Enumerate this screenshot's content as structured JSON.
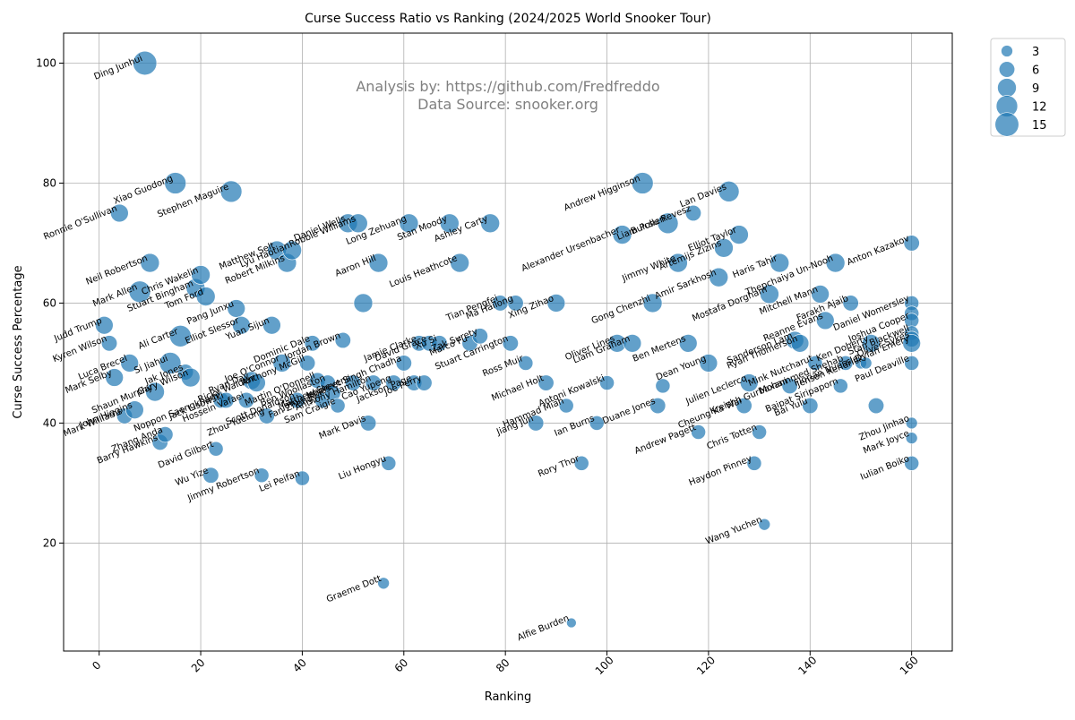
{
  "chart_data": {
    "type": "scatter",
    "title": "Curse Success Ratio vs Ranking (2024/2025 World Snooker Tour)",
    "xlabel": "Ranking",
    "ylabel": "Curse Success Percentage",
    "xlim": [
      -7,
      168
    ],
    "ylim": [
      2,
      105
    ],
    "xticks": [
      0,
      20,
      40,
      60,
      80,
      100,
      120,
      140,
      160
    ],
    "yticks": [
      20,
      40,
      60,
      80,
      100
    ],
    "grid": true,
    "point_color": "#1f77b4",
    "annotation_lines": [
      "Analysis by: https://github.com/Fredfreddo",
      "Data Source: snooker.org"
    ],
    "legend": {
      "position": "top-right (outside plot)",
      "sizes": [
        3,
        6,
        9,
        12,
        15
      ]
    },
    "points": [
      {
        "name": "Judd Trump",
        "x": 1,
        "y": 56.3,
        "s": 8
      },
      {
        "name": "Kyren Wilson",
        "x": 2,
        "y": 53.3,
        "s": 6
      },
      {
        "name": "Ronnie O'Sullivan",
        "x": 4,
        "y": 75,
        "s": 8
      },
      {
        "name": "Mark Selby",
        "x": 3,
        "y": 47.6,
        "s": 8
      },
      {
        "name": "Mark Williams",
        "x": 5,
        "y": 41.2,
        "s": 6
      },
      {
        "name": "Luca Brecel",
        "x": 6,
        "y": 50,
        "s": 8
      },
      {
        "name": "John Higgins",
        "x": 7,
        "y": 42.2,
        "s": 8
      },
      {
        "name": "Mark Allen",
        "x": 8,
        "y": 61.9,
        "s": 12
      },
      {
        "name": "Ding Junhui",
        "x": 9,
        "y": 100,
        "s": 15
      },
      {
        "name": "Neil Robertson",
        "x": 10,
        "y": 66.7,
        "s": 9
      },
      {
        "name": "Shaun Murphy",
        "x": 11,
        "y": 45.2,
        "s": 9
      },
      {
        "name": "Barry Hawkins",
        "x": 12,
        "y": 36.8,
        "s": 6
      },
      {
        "name": "Zhang Anda",
        "x": 13,
        "y": 38.1,
        "s": 6
      },
      {
        "name": "Si Jiahui",
        "x": 14,
        "y": 50,
        "s": 12
      },
      {
        "name": "Xiao Guodong",
        "x": 15,
        "y": 80,
        "s": 12
      },
      {
        "name": "Ali Carter",
        "x": 16,
        "y": 54.5,
        "s": 12
      },
      {
        "name": "Jak Jones",
        "x": 17,
        "y": 48.5,
        "s": 6
      },
      {
        "name": "Gary Wilson",
        "x": 18,
        "y": 47.6,
        "s": 9
      },
      {
        "name": "Stuart Bingham",
        "x": 19,
        "y": 62.5,
        "s": 9
      },
      {
        "name": "Chris Wakelin",
        "x": 20,
        "y": 64.7,
        "s": 9
      },
      {
        "name": "Tom Ford",
        "x": 21,
        "y": 61.1,
        "s": 9
      },
      {
        "name": "Wu Yize",
        "x": 22,
        "y": 31.3,
        "s": 6
      },
      {
        "name": "David Gilbert",
        "x": 23,
        "y": 35.7,
        "s": 5
      },
      {
        "name": "Noppon Saengkham",
        "x": 24,
        "y": 43.8,
        "s": 6
      },
      {
        "name": "Jack Lisowski",
        "x": 25,
        "y": 43.8,
        "s": 6
      },
      {
        "name": "Stephen Maguire",
        "x": 26,
        "y": 78.6,
        "s": 12
      },
      {
        "name": "Pang Junxu",
        "x": 27,
        "y": 59.1,
        "s": 8
      },
      {
        "name": "Elliot Slessor",
        "x": 28,
        "y": 56.3,
        "s": 8
      },
      {
        "name": "Hossein Vafaei",
        "x": 29,
        "y": 43.8,
        "s": 6
      },
      {
        "name": "Ryan Day",
        "x": 30,
        "y": 47.1,
        "s": 8
      },
      {
        "name": "Ricky Walden",
        "x": 31,
        "y": 46.7,
        "s": 8
      },
      {
        "name": "Jimmy Robertson",
        "x": 32,
        "y": 31.3,
        "s": 5
      },
      {
        "name": "Zhou Yuelong",
        "x": 33,
        "y": 41.2,
        "s": 6
      },
      {
        "name": "Yuan Sijun",
        "x": 34,
        "y": 56.3,
        "s": 8
      },
      {
        "name": "Matthew Selt",
        "x": 35,
        "y": 68.8,
        "s": 9
      },
      {
        "name": "Joe O'Connor",
        "x": 36,
        "y": 50,
        "s": 8
      },
      {
        "name": "Robert Milkins",
        "x": 37,
        "y": 66.7,
        "s": 9
      },
      {
        "name": "Lyu Haotian",
        "x": 38,
        "y": 68.8,
        "s": 9
      },
      {
        "name": "Scott Donaldson",
        "x": 39,
        "y": 43.8,
        "s": 6
      },
      {
        "name": "Lei Peifan",
        "x": 40,
        "y": 30.8,
        "s": 5
      },
      {
        "name": "Anthony McGill",
        "x": 41,
        "y": 50,
        "s": 6
      },
      {
        "name": "Dominic Dale",
        "x": 42,
        "y": 53.3,
        "s": 6
      },
      {
        "name": "Martin O'Donnell",
        "x": 43,
        "y": 47.1,
        "s": 6
      },
      {
        "name": "Fan Zhengyi",
        "x": 44,
        "y": 43.8,
        "s": 6
      },
      {
        "name": "Ben Woollaston",
        "x": 45,
        "y": 46.7,
        "s": 6
      },
      {
        "name": "Jamie Jones",
        "x": 46,
        "y": 45,
        "s": 6
      },
      {
        "name": "Sam Craigie",
        "x": 47,
        "y": 42.9,
        "s": 5
      },
      {
        "name": "Jordan Brown",
        "x": 48,
        "y": 53.8,
        "s": 6
      },
      {
        "name": "Daniel Wells",
        "x": 49,
        "y": 73.3,
        "s": 9
      },
      {
        "name": "Matthew Stevens",
        "x": 50,
        "y": 46.7,
        "s": 6
      },
      {
        "name": "Robbie Williams",
        "x": 51,
        "y": 73.3,
        "s": 9
      },
      {
        "name": "Jordan Brown II",
        "x": 52,
        "y": 60,
        "s": 9
      },
      {
        "name": "Mark Davis",
        "x": 53,
        "y": 40,
        "s": 6
      },
      {
        "name": "Anthony Hamilton",
        "x": 54,
        "y": 46.7,
        "s": 6
      },
      {
        "name": "Aaron Hill",
        "x": 55,
        "y": 66.7,
        "s": 9
      },
      {
        "name": "Graeme Dott",
        "x": 56,
        "y": 13.3,
        "s": 3
      },
      {
        "name": "Liu Hongyu",
        "x": 57,
        "y": 33.3,
        "s": 5
      },
      {
        "name": "Cao Yupeng",
        "x": 58,
        "y": 46.7,
        "s": 6
      },
      {
        "name": "Ishpreet Singh Chadha",
        "x": 60,
        "y": 50,
        "s": 6
      },
      {
        "name": "Long Zehuang",
        "x": 61,
        "y": 73.3,
        "s": 9
      },
      {
        "name": "Jackson Page",
        "x": 62,
        "y": 46.7,
        "s": 6
      },
      {
        "name": "Jamie Clarke",
        "x": 63,
        "y": 53.3,
        "s": 6
      },
      {
        "name": "Joe Perry",
        "x": 64,
        "y": 46.7,
        "s": 6
      },
      {
        "name": "David Grace",
        "x": 65,
        "y": 53.3,
        "s": 6
      },
      {
        "name": "Xu Si",
        "x": 67,
        "y": 53.3,
        "s": 6
      },
      {
        "name": "Stan Moody",
        "x": 69,
        "y": 73.3,
        "s": 9
      },
      {
        "name": "Louis Heathcote",
        "x": 71,
        "y": 66.7,
        "s": 9
      },
      {
        "name": "Marco Fu",
        "x": 73,
        "y": 53.3,
        "s": 6
      },
      {
        "name": "Zak Surety",
        "x": 75,
        "y": 54.5,
        "s": 6
      },
      {
        "name": "Ashley Carty",
        "x": 77,
        "y": 73.3,
        "s": 9
      },
      {
        "name": "Tian Pengfei",
        "x": 79,
        "y": 60,
        "s": 6
      },
      {
        "name": "Stuart Carrington",
        "x": 81,
        "y": 53.3,
        "s": 6
      },
      {
        "name": "Ma Hailong",
        "x": 82,
        "y": 60,
        "s": 6
      },
      {
        "name": "Ross Muir",
        "x": 84,
        "y": 50,
        "s": 5
      },
      {
        "name": "Jiang Jun",
        "x": 86,
        "y": 40,
        "s": 6
      },
      {
        "name": "Michael Holt",
        "x": 88,
        "y": 46.7,
        "s": 6
      },
      {
        "name": "Xing Zihao",
        "x": 90,
        "y": 60,
        "s": 8
      },
      {
        "name": "Hammad Miah",
        "x": 92,
        "y": 42.9,
        "s": 5
      },
      {
        "name": "Alfie Burden",
        "x": 93,
        "y": 6.7,
        "s": 2
      },
      {
        "name": "Rory Thor",
        "x": 95,
        "y": 33.3,
        "s": 5
      },
      {
        "name": "Ian Burns",
        "x": 98,
        "y": 40,
        "s": 5
      },
      {
        "name": "Antoni Kowalski",
        "x": 100,
        "y": 46.7,
        "s": 5
      },
      {
        "name": "Oliver Lines",
        "x": 102,
        "y": 53.3,
        "s": 8
      },
      {
        "name": "Alexander Ursenbacher",
        "x": 103,
        "y": 71.4,
        "s": 9
      },
      {
        "name": "Liam Graham",
        "x": 105,
        "y": 53.3,
        "s": 8
      },
      {
        "name": "Andrew Higginson",
        "x": 107,
        "y": 80,
        "s": 12
      },
      {
        "name": "Gong Chenzhi",
        "x": 109,
        "y": 60,
        "s": 9
      },
      {
        "name": "Duane Jones",
        "x": 110,
        "y": 42.9,
        "s": 6
      },
      {
        "name": "Antoni Kowalski II",
        "x": 111,
        "y": 46.2,
        "s": 5
      },
      {
        "name": "Liam Pullen",
        "x": 112,
        "y": 73.3,
        "s": 11
      },
      {
        "name": "Jimmy White",
        "x": 114,
        "y": 66.7,
        "s": 9
      },
      {
        "name": "Ben Mertens",
        "x": 116,
        "y": 53.3,
        "s": 8
      },
      {
        "name": "Bulcsu Revesz",
        "x": 117,
        "y": 75,
        "s": 6
      },
      {
        "name": "Andrew Pagett",
        "x": 118,
        "y": 38.5,
        "s": 5
      },
      {
        "name": "Dean Young",
        "x": 120,
        "y": 50,
        "s": 8
      },
      {
        "name": "Amir Sarkhosh",
        "x": 122,
        "y": 64.3,
        "s": 9
      },
      {
        "name": "Artemijs Zizins",
        "x": 123,
        "y": 69.2,
        "s": 9
      },
      {
        "name": "Lan Davies",
        "x": 124,
        "y": 78.6,
        "s": 11
      },
      {
        "name": "Elliot Taylor",
        "x": 126,
        "y": 71.4,
        "s": 9
      },
      {
        "name": "Cheung Ka Wai",
        "x": 127,
        "y": 42.9,
        "s": 6
      },
      {
        "name": "Julien Leclercq",
        "x": 128,
        "y": 46.7,
        "s": 8
      },
      {
        "name": "Haydon Pinney",
        "x": 129,
        "y": 33.3,
        "s": 5
      },
      {
        "name": "Chris Totten",
        "x": 130,
        "y": 38.5,
        "s": 5
      },
      {
        "name": "Wang Yuchen",
        "x": 131,
        "y": 23.1,
        "s": 3
      },
      {
        "name": "Mostafa Dorgham",
        "x": 132,
        "y": 61.5,
        "s": 9
      },
      {
        "name": "Haris Tahir",
        "x": 134,
        "y": 66.7,
        "s": 9
      },
      {
        "name": "Kreishh Gurbaxani",
        "x": 136,
        "y": 46.2,
        "s": 6
      },
      {
        "name": "Sanderson Lam",
        "x": 137,
        "y": 53.8,
        "s": 8
      },
      {
        "name": "Ryan Thomerson",
        "x": 138,
        "y": 53.3,
        "s": 8
      },
      {
        "name": "Bai Yulu",
        "x": 140,
        "y": 42.9,
        "s": 6
      },
      {
        "name": "Mink Nutcharut",
        "x": 141,
        "y": 50,
        "s": 5
      },
      {
        "name": "Mitchell Mann",
        "x": 142,
        "y": 61.5,
        "s": 8
      },
      {
        "name": "Reanne Evans",
        "x": 143,
        "y": 57.1,
        "s": 8
      },
      {
        "name": "Thepchaiya Un-Nooh",
        "x": 145,
        "y": 66.7,
        "s": 9
      },
      {
        "name": "Baipat Siripaporn",
        "x": 146,
        "y": 46.2,
        "s": 5
      },
      {
        "name": "Mohammed Shehab",
        "x": 147,
        "y": 50,
        "s": 5
      },
      {
        "name": "Farakh Ajaib",
        "x": 148,
        "y": 60,
        "s": 6
      },
      {
        "name": "Florian Nuessle",
        "x": 150,
        "y": 50,
        "s": 3
      },
      {
        "name": "Jenson Kendrick",
        "x": 151,
        "y": 50,
        "s": 3
      },
      {
        "name": "Ken Doherty",
        "x": 152,
        "y": 53.3,
        "s": 8
      },
      {
        "name": "Paul Deaville II",
        "x": 153,
        "y": 42.9,
        "s": 6
      },
      {
        "name": "Anton Kazakov",
        "x": 160,
        "y": 70,
        "s": 6
      },
      {
        "name": "Daniel Womersley",
        "x": 160,
        "y": 60,
        "s": 5
      },
      {
        "name": "Ryan Thomerson II",
        "x": 160,
        "y": 58.3,
        "s": 5
      },
      {
        "name": "Joshua Cooper",
        "x": 160,
        "y": 57.1,
        "s": 5
      },
      {
        "name": "Stan Blackwell",
        "x": 160,
        "y": 55,
        "s": 5
      },
      {
        "name": "Oliver Sykes",
        "x": 160,
        "y": 54,
        "s": 6
      },
      {
        "name": "Dylan Emery",
        "x": 160,
        "y": 53.3,
        "s": 8
      },
      {
        "name": "Paul Deaville",
        "x": 160,
        "y": 50,
        "s": 5
      },
      {
        "name": "Zhou Jinhao",
        "x": 160,
        "y": 40,
        "s": 3
      },
      {
        "name": "Mark Joyce",
        "x": 160,
        "y": 37.5,
        "s": 3
      },
      {
        "name": "Iulian Boiko",
        "x": 160,
        "y": 33.3,
        "s": 5
      }
    ]
  }
}
